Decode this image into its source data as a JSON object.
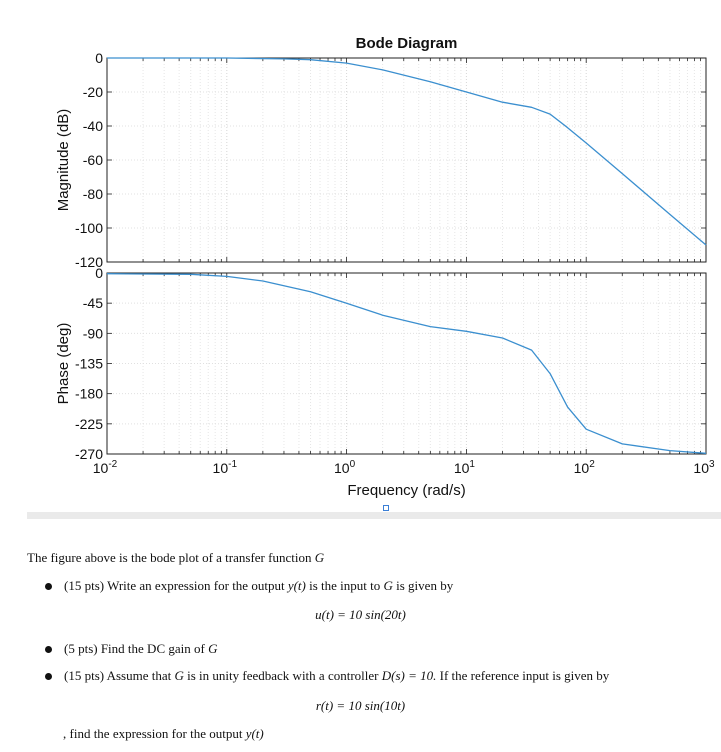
{
  "chart_data": [
    {
      "type": "line",
      "title": "Bode Diagram",
      "ylabel": "Magnitude (dB)",
      "xscale": "log",
      "xlim": [
        0.01,
        1000
      ],
      "ylim": [
        -120,
        0
      ],
      "yticks": [
        "0",
        "-20",
        "-40",
        "-60",
        "-80",
        "-100",
        "-120"
      ],
      "grid": true,
      "color": "#3b8fcf",
      "x": [
        0.01,
        0.1,
        0.3,
        0.5,
        1,
        2,
        5,
        10,
        20,
        35,
        50,
        70,
        100,
        200,
        500,
        1000
      ],
      "y": [
        0,
        0,
        -0.5,
        -1,
        -3,
        -7,
        -14,
        -20,
        -26,
        -29,
        -33,
        -41,
        -50,
        -68,
        -92,
        -110
      ]
    },
    {
      "type": "line",
      "ylabel": "Phase (deg)",
      "xlabel": "Frequency (rad/s)",
      "xscale": "log",
      "xlim": [
        0.01,
        1000
      ],
      "ylim": [
        -270,
        0
      ],
      "yticks": [
        "0",
        "-45",
        "-90",
        "-135",
        "-180",
        "-225",
        "-270"
      ],
      "xticks": [
        {
          "base": "10",
          "exp": "-2"
        },
        {
          "base": "10",
          "exp": "-1"
        },
        {
          "base": "10",
          "exp": "0"
        },
        {
          "base": "10",
          "exp": "1"
        },
        {
          "base": "10",
          "exp": "2"
        },
        {
          "base": "10",
          "exp": "3"
        }
      ],
      "grid": true,
      "color": "#3b8fcf",
      "x": [
        0.01,
        0.05,
        0.1,
        0.2,
        0.5,
        1,
        2,
        5,
        10,
        20,
        35,
        50,
        70,
        100,
        200,
        500,
        1000
      ],
      "y": [
        -1,
        -2,
        -5,
        -12,
        -28,
        -45,
        -63,
        -80,
        -87,
        -97,
        -115,
        -150,
        -200,
        -233,
        -255,
        -265,
        -269
      ]
    }
  ],
  "problem": {
    "intro": "The figure above is the bode plot of a transfer function",
    "intro_var": "G",
    "b1_text": "(15 pts) Write an expression for the output",
    "b1_y": "y(t)",
    "b1_mid": "is the input to",
    "b1_G": "G",
    "b1_end": "is given by",
    "eq1": "u(t) = 10 sin(20t)",
    "b2_text": "(5 pts) Find the DC gain of",
    "b2_G": "G",
    "b3_text": "(15 pts) Assume that",
    "b3_G": "G",
    "b3_mid": "is in unity feedback with a controller",
    "b3_D": "D(s) = 10.",
    "b3_end": "If the reference input is given by",
    "eq2": "r(t) = 10 sin(10t)",
    "tail_text": ", find the expression for the output",
    "tail_y": "y(t)"
  }
}
